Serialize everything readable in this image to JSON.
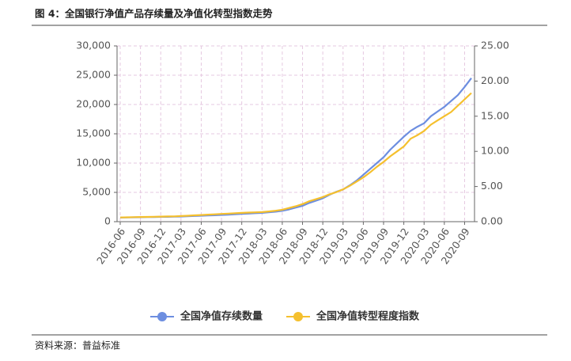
{
  "chart_data": {
    "type": "line",
    "title": "图 4：全国银行净值产品存续量及净值化转型指数走势",
    "source": "资料来源：普益标准",
    "categories": [
      "2016-06",
      null,
      null,
      "2016-09",
      null,
      null,
      "2016-12",
      null,
      null,
      "2017-03",
      null,
      null,
      "2017-06",
      null,
      null,
      "2017-09",
      null,
      null,
      "2017-12",
      null,
      null,
      "2018-03",
      null,
      null,
      "2018-06",
      null,
      null,
      "2018-09",
      null,
      null,
      "2018-12",
      null,
      null,
      "2019-03",
      null,
      null,
      "2019-06",
      null,
      null,
      "2019-09",
      null,
      null,
      "2019-12",
      null,
      null,
      "2020-03",
      null,
      null,
      "2020-06",
      null,
      null,
      "2020-09",
      null
    ],
    "series": [
      {
        "name": "全国净值存续数量",
        "color": "#6d8ee0",
        "values": [
          700,
          720,
          740,
          760,
          780,
          800,
          820,
          830,
          850,
          880,
          920,
          970,
          1020,
          1060,
          1100,
          1150,
          1200,
          1260,
          1320,
          1380,
          1440,
          1500,
          1600,
          1700,
          1850,
          2100,
          2400,
          2700,
          3200,
          3600,
          4000,
          4600,
          5100,
          5500,
          6200,
          7000,
          8000,
          9000,
          10000,
          11000,
          12300,
          13400,
          14500,
          15500,
          16200,
          16800,
          18000,
          18800,
          19600,
          20600,
          21600,
          23000,
          24500
        ]
      },
      {
        "name": "全国净值转型程度指数",
        "color": "#f5c02e",
        "axis": "y2",
        "values": [
          0.6,
          0.62,
          0.64,
          0.66,
          0.68,
          0.7,
          0.72,
          0.74,
          0.76,
          0.8,
          0.85,
          0.9,
          0.95,
          1.0,
          1.05,
          1.1,
          1.15,
          1.2,
          1.25,
          1.3,
          1.33,
          1.36,
          1.45,
          1.55,
          1.7,
          1.95,
          2.2,
          2.5,
          2.9,
          3.2,
          3.5,
          3.9,
          4.2,
          4.6,
          5.1,
          5.7,
          6.3,
          7.0,
          7.8,
          8.5,
          9.3,
          10.0,
          10.7,
          11.8,
          12.3,
          12.9,
          13.8,
          14.4,
          15.0,
          15.6,
          16.5,
          17.4,
          18.3
        ]
      }
    ],
    "ylim": [
      0,
      30000
    ],
    "yticks": [
      0,
      {
        "value": 5000,
        "label": "5,000"
      },
      {
        "value": 10000,
        "label": "10,000"
      },
      {
        "value": 15000,
        "label": "15,000"
      },
      {
        "value": 20000,
        "label": "20,000"
      },
      {
        "value": 25000,
        "label": "25,000"
      },
      {
        "value": 30000,
        "label": "30,000"
      }
    ],
    "y2lim": [
      0,
      25
    ],
    "y2ticks": [
      {
        "value": 0,
        "label": "0.00"
      },
      {
        "value": 5,
        "label": "5.00"
      },
      {
        "value": 10,
        "label": "10.00"
      },
      {
        "value": 15,
        "label": "15.00"
      },
      {
        "value": 20,
        "label": "20.00"
      },
      {
        "value": 25,
        "label": "25.00"
      }
    ],
    "grid": true,
    "legend": "bottom"
  }
}
